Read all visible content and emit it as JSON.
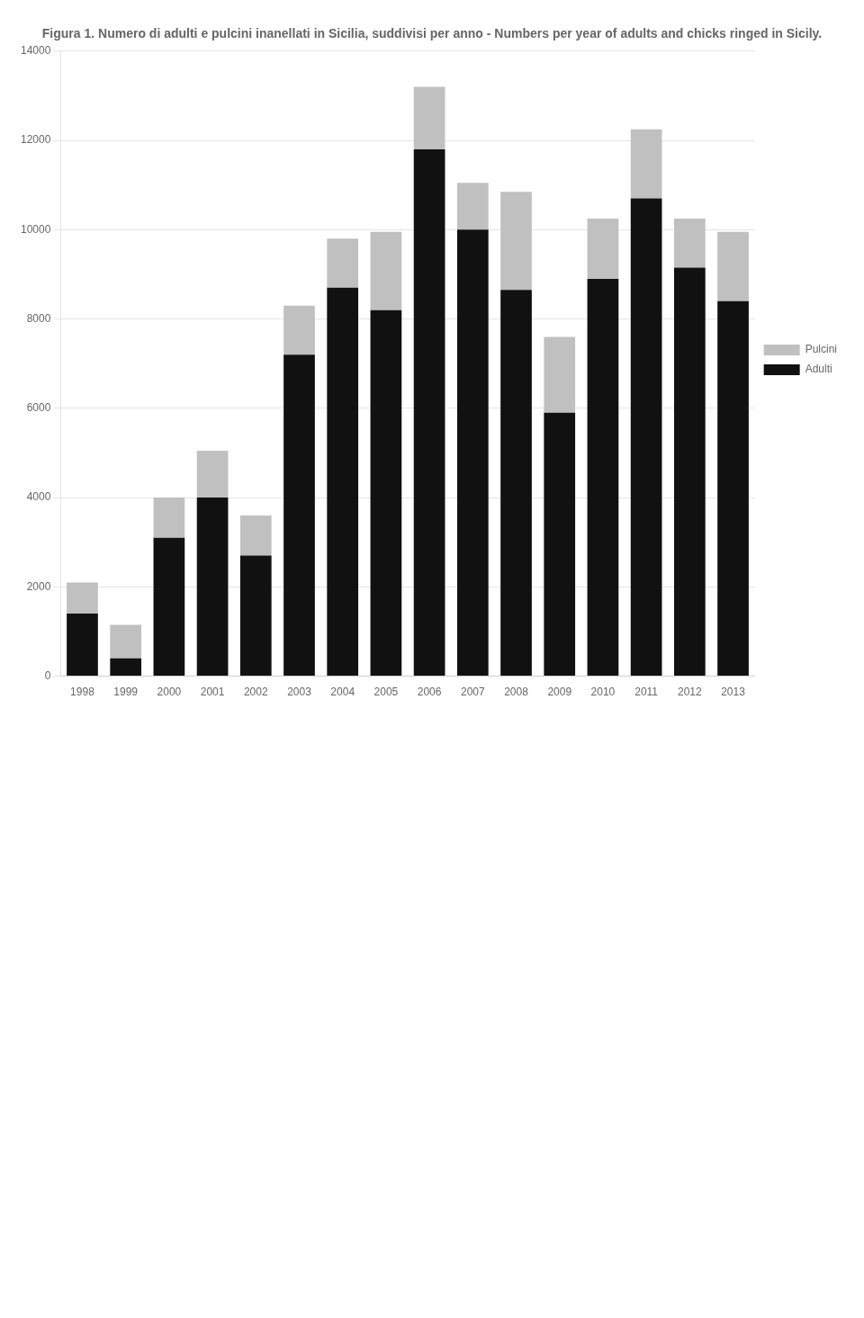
{
  "chart_data": {
    "type": "bar",
    "title": "Figura 1. Numero di adulti e pulcini inanellati in Sicilia, suddivisi per anno - Numbers per year of adults and chicks ringed in Sicily.",
    "categories": [
      "1998",
      "1999",
      "2000",
      "2001",
      "2002",
      "2003",
      "2004",
      "2005",
      "2006",
      "2007",
      "2008",
      "2009",
      "2010",
      "2011",
      "2012",
      "2013"
    ],
    "series": [
      {
        "name": "Adulti",
        "color": "#111111",
        "values": [
          1400,
          400,
          3100,
          4000,
          2700,
          7200,
          8700,
          8200,
          11800,
          10000,
          8650,
          5900,
          8900,
          10700,
          9150,
          8400
        ]
      },
      {
        "name": "Pulcini",
        "color": "#c0c0c0",
        "values": [
          700,
          750,
          900,
          1050,
          900,
          1100,
          1100,
          1750,
          1400,
          1050,
          2200,
          1700,
          1350,
          1550,
          1100,
          1550
        ]
      }
    ],
    "stacked": true,
    "ylim": [
      0,
      14000
    ],
    "yticks": [
      0,
      2000,
      4000,
      6000,
      8000,
      10000,
      12000,
      14000
    ],
    "grid": true,
    "legend": "right"
  }
}
